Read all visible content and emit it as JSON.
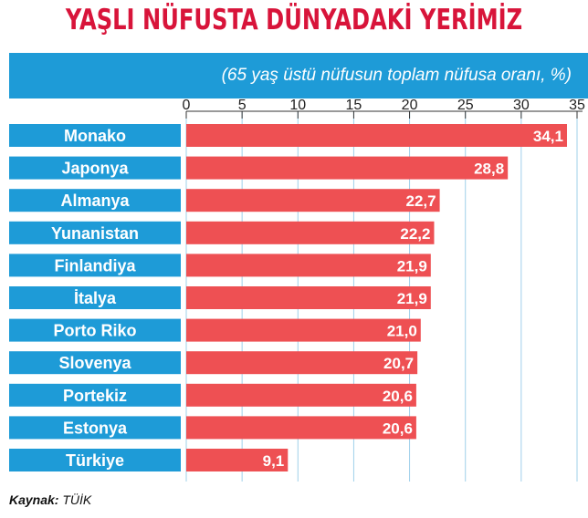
{
  "chart_data": {
    "type": "bar",
    "orientation": "horizontal",
    "title": "YAŞLI NÜFUSTA DÜNYADAKİ YERİMİZ",
    "subtitle": "(65 yaş üstü nüfusun toplam nüfusa oranı, %)",
    "categories": [
      "Monako",
      "Japonya",
      "Almanya",
      "Yunanistan",
      "Finlandiya",
      "İtalya",
      "Porto Riko",
      "Slovenya",
      "Portekiz",
      "Estonya",
      "Türkiye"
    ],
    "values": [
      34.1,
      28.8,
      22.7,
      22.2,
      21.9,
      21.9,
      21.0,
      20.7,
      20.6,
      20.6,
      9.1
    ],
    "value_labels": [
      "34,1",
      "28,8",
      "22,7",
      "22,2",
      "21,9",
      "21,9",
      "21,0",
      "20,7",
      "20,6",
      "20,6",
      "9,1"
    ],
    "x_ticks": [
      0,
      5,
      10,
      15,
      20,
      25,
      30,
      35
    ],
    "xlim": [
      0,
      35
    ],
    "grid": true,
    "colors": {
      "bar": "#ee5053",
      "category_band": "#1e9bd7",
      "title": "#d8143a",
      "grid": "#9fd0ea"
    }
  },
  "source": {
    "label": "Kaynak:",
    "value": "TÜİK"
  }
}
